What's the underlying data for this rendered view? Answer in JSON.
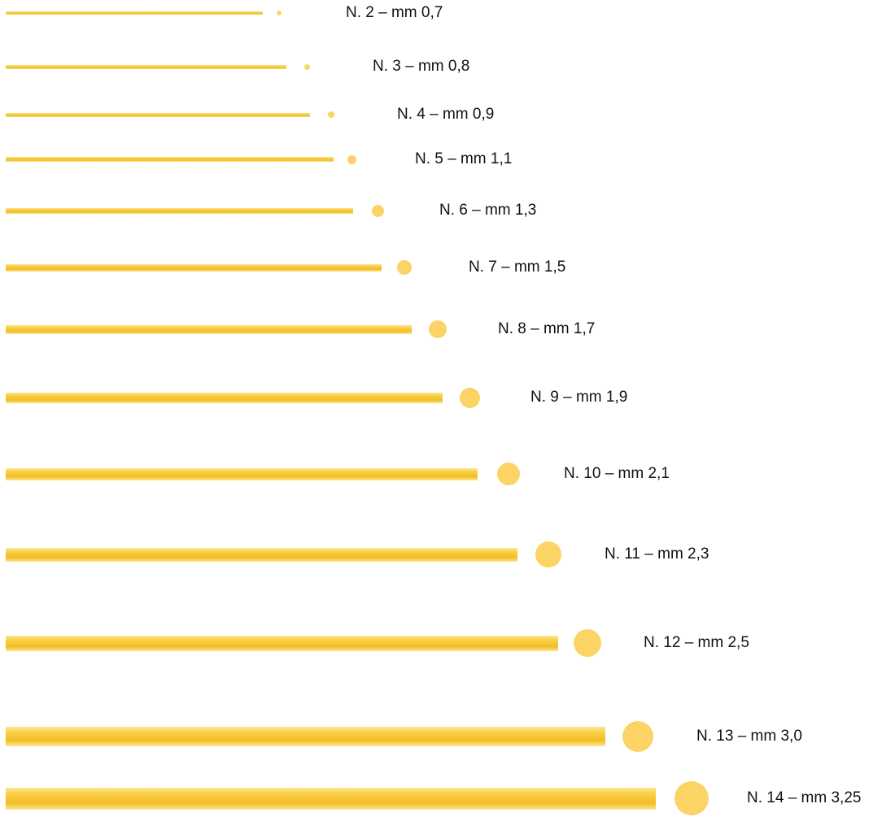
{
  "colors": {
    "pasta": "#f9ce45",
    "pasta_light": "#fde68f",
    "pasta_dark": "#f2bd25",
    "dot": "#fcd465",
    "text": "#111111"
  },
  "icons": {
    "rod": "spaghetti-side-view",
    "dot": "spaghetti-cross-section"
  },
  "chart_data": {
    "type": "diagram",
    "unit": "mm",
    "items": [
      {
        "number": 2,
        "diameter_mm": 0.7,
        "label": "N. 2 – mm 0,7"
      },
      {
        "number": 3,
        "diameter_mm": 0.8,
        "label": "N. 3 – mm 0,8"
      },
      {
        "number": 4,
        "diameter_mm": 0.9,
        "label": "N. 4 – mm 0,9"
      },
      {
        "number": 5,
        "diameter_mm": 1.1,
        "label": "N. 5 – mm 1,1"
      },
      {
        "number": 6,
        "diameter_mm": 1.3,
        "label": "N. 6 – mm 1,3"
      },
      {
        "number": 7,
        "diameter_mm": 1.5,
        "label": "N. 7 – mm 1,5"
      },
      {
        "number": 8,
        "diameter_mm": 1.7,
        "label": "N. 8 – mm 1,7"
      },
      {
        "number": 9,
        "diameter_mm": 1.9,
        "label": "N. 9 – mm 1,9"
      },
      {
        "number": 10,
        "diameter_mm": 2.1,
        "label": "N. 10 – mm 2,1"
      },
      {
        "number": 11,
        "diameter_mm": 2.3,
        "label": "N. 11 – mm 2,3"
      },
      {
        "number": 12,
        "diameter_mm": 2.5,
        "label": "N. 12 – mm 2,5"
      },
      {
        "number": 13,
        "diameter_mm": 3.0,
        "label": "N. 13 – mm 3,0"
      },
      {
        "number": 14,
        "diameter_mm": 3.25,
        "label": "N. 14 – mm 3,25"
      }
    ]
  }
}
